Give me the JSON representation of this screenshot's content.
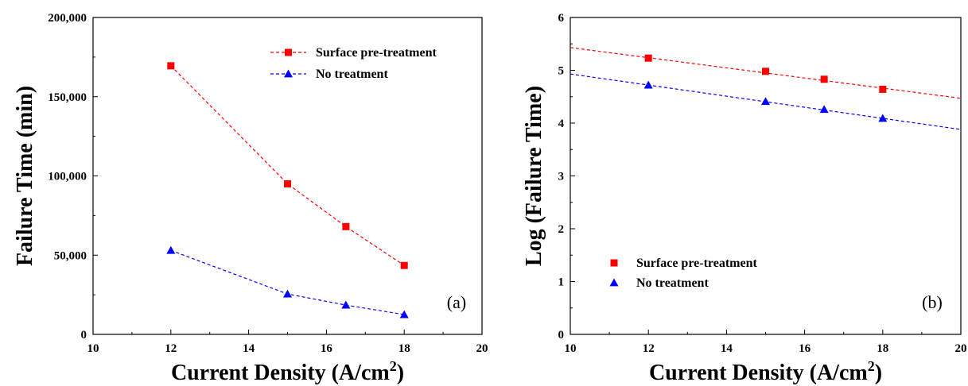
{
  "chart_data": [
    {
      "type": "line",
      "panel_label": "(a)",
      "xlabel": "Current Density (A/cm",
      "xlabel_sup": "2",
      "xlabel_tail": ")",
      "ylabel": "Failure Time (min)",
      "xlim": [
        10,
        20
      ],
      "ylim": [
        0,
        200000
      ],
      "xticks": [
        10,
        12,
        14,
        16,
        18,
        20
      ],
      "yticks": [
        0,
        50000,
        100000,
        150000,
        200000
      ],
      "ytick_labels": [
        "0",
        "50,000",
        "100,000",
        "150,000",
        "200,000"
      ],
      "legend_position": "top-right",
      "series": [
        {
          "name": "Surface pre-treatment",
          "color": "#ff0000",
          "marker": "square",
          "line": "dashed",
          "x": [
            12,
            15,
            16.5,
            18
          ],
          "y": [
            169500,
            95000,
            68000,
            43500
          ]
        },
        {
          "name": "No treatment",
          "color": "#0000ff",
          "marker": "triangle",
          "line": "dashed",
          "x": [
            12,
            15,
            16.5,
            18
          ],
          "y": [
            53000,
            25500,
            18500,
            12500
          ]
        }
      ]
    },
    {
      "type": "scatter",
      "panel_label": "(b)",
      "xlabel": "Current Density (A/cm",
      "xlabel_sup": "2",
      "xlabel_tail": ")",
      "ylabel": "Log (Failure Time)",
      "xlim": [
        10,
        20
      ],
      "ylim": [
        0,
        6
      ],
      "xticks": [
        10,
        12,
        14,
        16,
        18,
        20
      ],
      "yticks": [
        0,
        1,
        2,
        3,
        4,
        5,
        6
      ],
      "ytick_labels": [
        "0",
        "1",
        "2",
        "3",
        "4",
        "5",
        "6"
      ],
      "legend_position": "bottom-left",
      "series": [
        {
          "name": "Surface pre-treatment",
          "color": "#ff0000",
          "marker": "square",
          "x": [
            12,
            15,
            16.5,
            18
          ],
          "y": [
            5.23,
            4.98,
            4.83,
            4.64
          ],
          "fit_line": {
            "x": [
              10,
              20
            ],
            "y": [
              5.43,
              4.47
            ],
            "style": "dashed"
          }
        },
        {
          "name": "No treatment",
          "color": "#0000ff",
          "marker": "triangle",
          "x": [
            12,
            15,
            16.5,
            18
          ],
          "y": [
            4.72,
            4.41,
            4.26,
            4.09
          ],
          "fit_line": {
            "x": [
              10,
              20
            ],
            "y": [
              4.93,
              3.88
            ],
            "style": "dashed"
          }
        }
      ]
    }
  ]
}
